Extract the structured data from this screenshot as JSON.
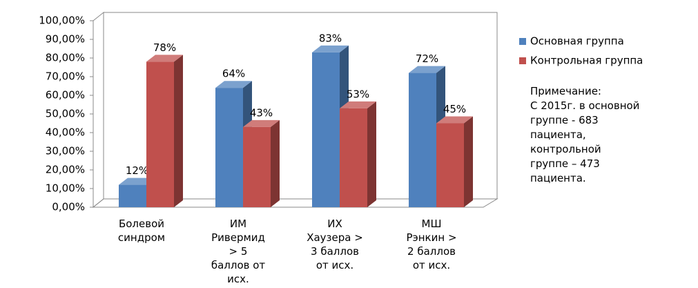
{
  "chart_data": {
    "type": "bar3d",
    "categories": [
      "Болевой\nсиндром",
      "ИМ\nРивермид\n> 5\nбаллов от\nисх.",
      "ИХ\nХаузера >\n3 баллов\nот исх.",
      "МШ\nРэнкин >\n2 баллов\nот исх."
    ],
    "series": [
      {
        "name": "Основная группа",
        "color": "#4f81bd",
        "values": [
          12,
          64,
          83,
          72
        ],
        "value_labels": [
          "12%",
          "64%",
          "83%",
          "72%"
        ]
      },
      {
        "name": "Контрольная группа",
        "color": "#c0504d",
        "values": [
          78,
          43,
          53,
          45
        ],
        "value_labels": [
          "78%",
          "43%",
          "53%",
          "45%"
        ]
      }
    ],
    "ylim": [
      0,
      100
    ],
    "yticks": [
      {
        "value": 0,
        "label": "0,00%"
      },
      {
        "value": 10,
        "label": "10,00%"
      },
      {
        "value": 20,
        "label": "20,00%"
      },
      {
        "value": 30,
        "label": "30,00%"
      },
      {
        "value": 40,
        "label": "40,00%"
      },
      {
        "value": 50,
        "label": "50,00%"
      },
      {
        "value": 60,
        "label": "60,00%"
      },
      {
        "value": 70,
        "label": "70,00%"
      },
      {
        "value": 80,
        "label": "80,00%"
      },
      {
        "value": 90,
        "label": "90,00%"
      },
      {
        "value": 100,
        "label": "100,00%"
      }
    ],
    "legend": "right",
    "note": "Примечание:\nС 2015г. в основной\nгруппе  - 683\nпациента,\nконтрольной\nгруппе –  473\nпациента."
  }
}
